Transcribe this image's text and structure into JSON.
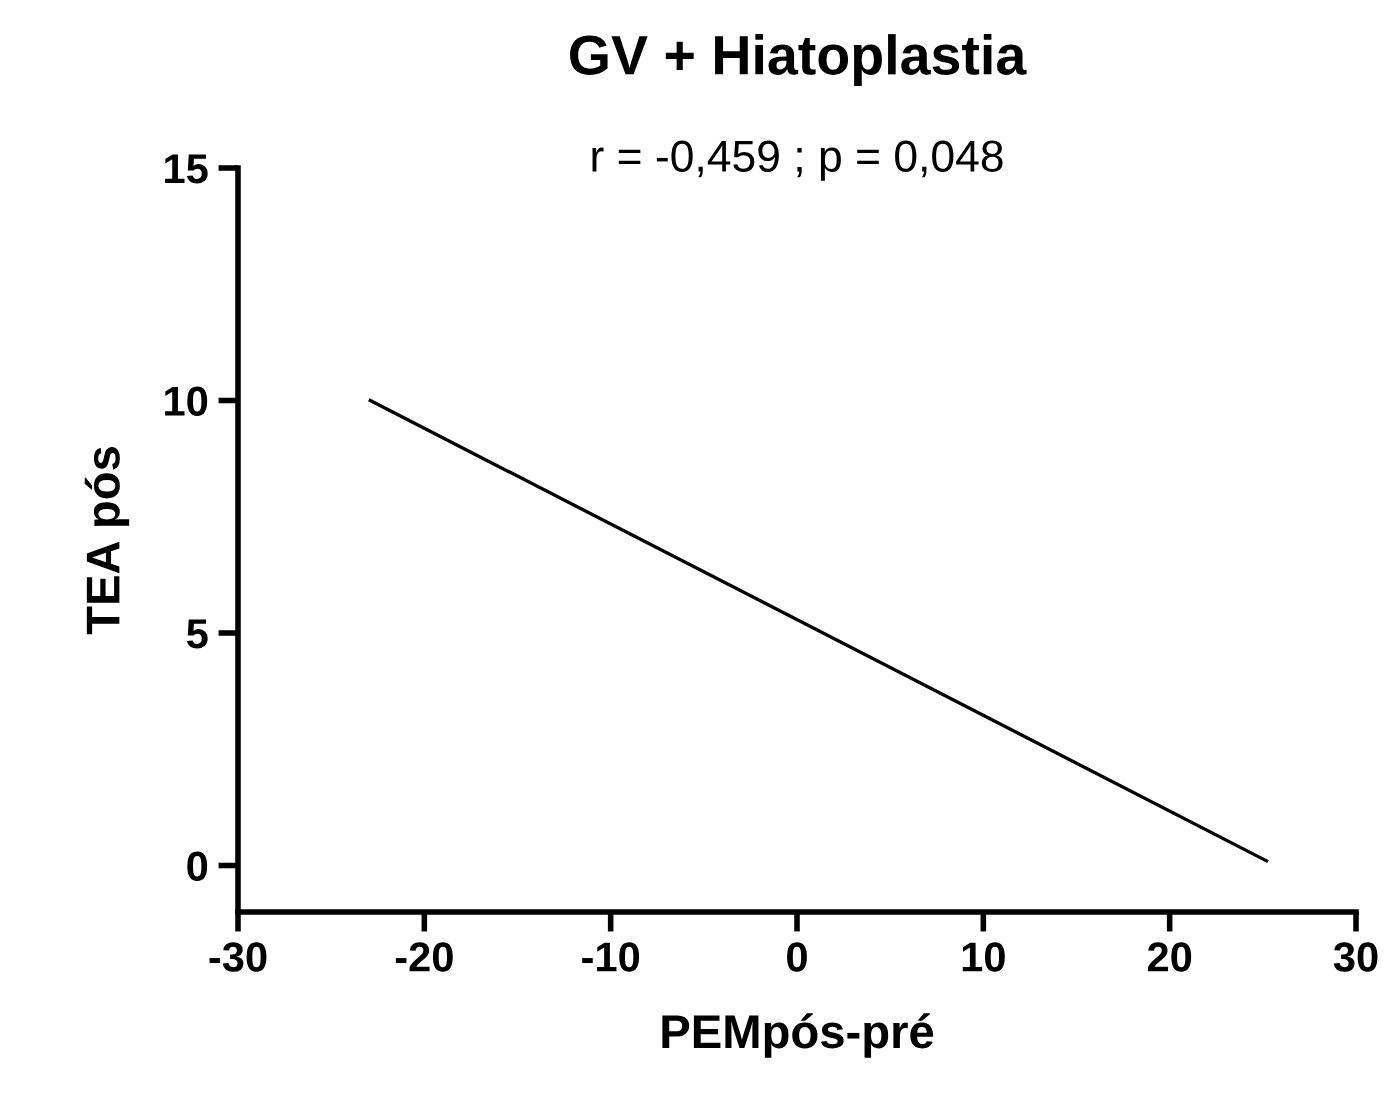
{
  "chart_data": {
    "type": "line",
    "title": "GV + Hiatoplastia",
    "subtitle": "r = -0,459 ; p = 0,048",
    "xlabel": "PEMpós-pré",
    "ylabel": "TEA pós",
    "series": [
      {
        "color": "#000000",
        "x": [
          -22.9,
          25.2
        ],
        "values": [
          10.0,
          0.1
        ]
      }
    ],
    "xlim": [
      -30,
      30
    ],
    "xticks": [
      -30,
      -20,
      -10,
      0,
      10,
      20,
      30
    ],
    "ylim": [
      -1,
      15
    ],
    "yticks": [
      0,
      5,
      10,
      15
    ],
    "grid": false,
    "legend": false,
    "marker": "none",
    "line_style": "solid"
  }
}
